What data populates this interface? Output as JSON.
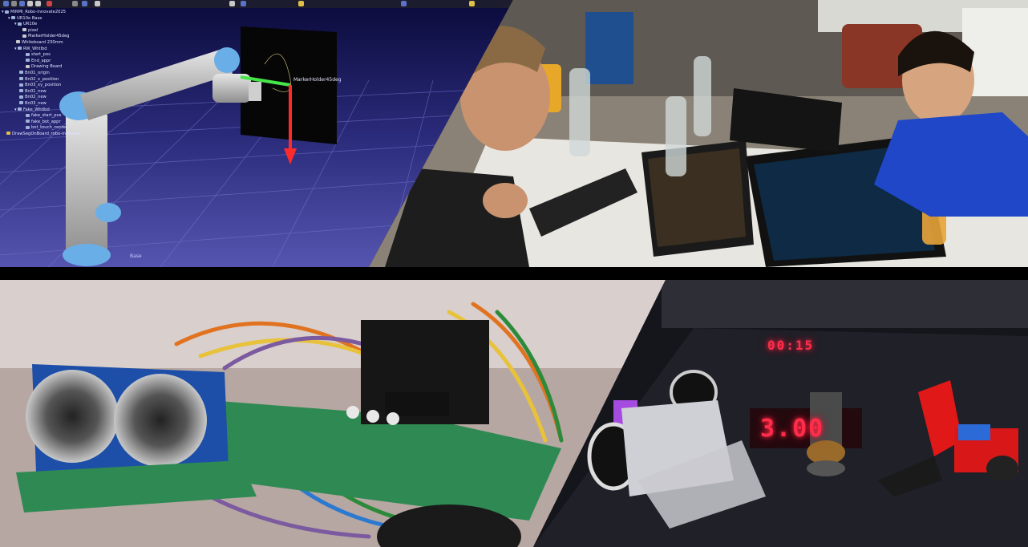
{
  "collage": {
    "robot_view": {
      "tree_items": [
        "MIRMI_Robo-innovate2025",
        "UR10e Base",
        "UR10e",
        "pixel",
        "MarkerHolder45deg",
        "Whiteboard 230mm",
        "RW_Whtlbd",
        "start_pos",
        "End_appr",
        "Drawing Board",
        "Bn01_origin",
        "Bn02_x_position",
        "Bn03_xy_position",
        "Bn01_new",
        "Bn02_new",
        "Bn03_new",
        "Fake_Whtlbd",
        "fake_start_pos",
        "fake_bot_appr",
        "bot_touch_center",
        "DrawSegOnBoard_robo-innovate"
      ],
      "marker_label": "MarkerHolder45deg",
      "base_label": "Base"
    },
    "arena": {
      "small_display": "00:15",
      "big_display": "3.00"
    }
  }
}
